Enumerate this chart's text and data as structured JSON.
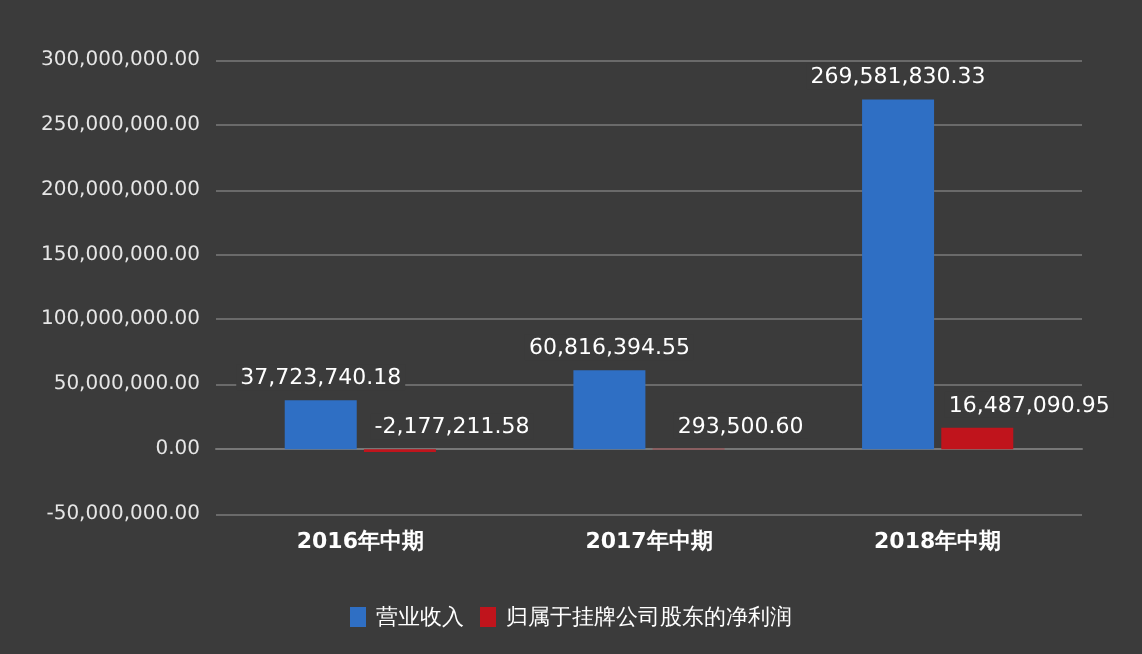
{
  "chart_data": {
    "type": "bar",
    "categories": [
      "2016年中期",
      "2017年中期",
      "2018年中期"
    ],
    "series": [
      {
        "name": "营业收入",
        "color": "#2f6fc4",
        "values": [
          37723740.18,
          60816394.55,
          269581830.33
        ],
        "value_labels": [
          "37,723,740.18",
          "60,816,394.55",
          "269,581,830.33"
        ]
      },
      {
        "name": "归属于挂牌公司股东的净利润",
        "color": "#c0141c",
        "values": [
          -2177211.58,
          293500.6,
          16487090.95
        ],
        "value_labels": [
          "-2,177,211.58",
          "293,500.60",
          "16,487,090.95"
        ]
      }
    ],
    "ylim": [
      -50000000,
      300000000
    ],
    "yticks": [
      {
        "value": -50000000,
        "label": "-50,000,000.00"
      },
      {
        "value": 0,
        "label": "0.00"
      },
      {
        "value": 50000000,
        "label": "50,000,000.00"
      },
      {
        "value": 100000000,
        "label": "100,000,000.00"
      },
      {
        "value": 150000000,
        "label": "150,000,000.00"
      },
      {
        "value": 200000000,
        "label": "200,000,000.00"
      },
      {
        "value": 250000000,
        "label": "250,000,000.00"
      },
      {
        "value": 300000000,
        "label": "300,000,000.00"
      }
    ],
    "grid": "y",
    "legend": "bottom"
  }
}
